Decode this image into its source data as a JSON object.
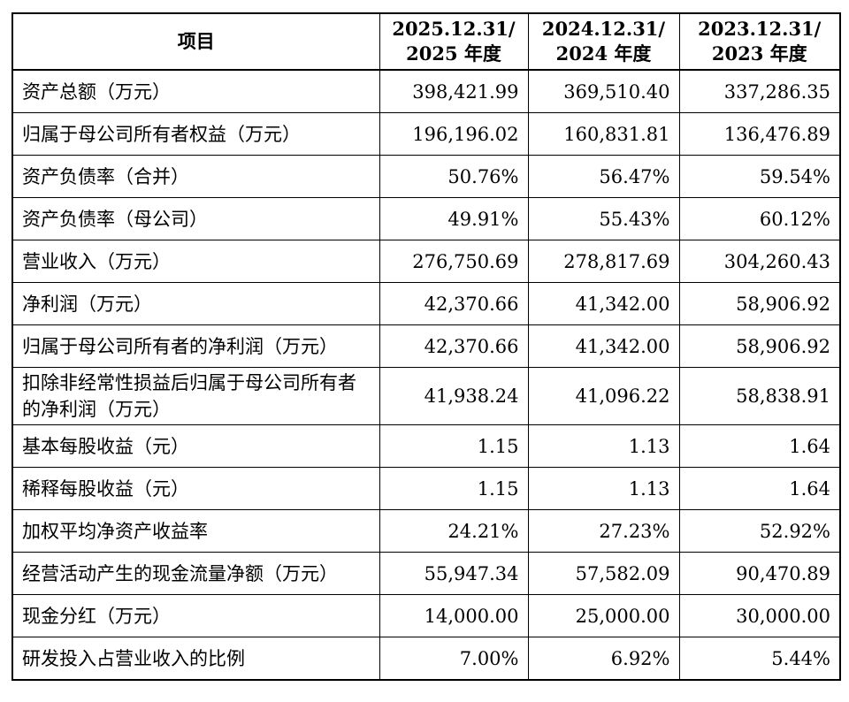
{
  "table": {
    "header": {
      "item": "项目",
      "periods": [
        {
          "line1": "2025.12.31/",
          "line2": "2025 年度"
        },
        {
          "line1": "2024.12.31/",
          "line2": "2024 年度"
        },
        {
          "line1": "2023.12.31/",
          "line2": "2023 年度"
        }
      ]
    },
    "rows": [
      {
        "label": "资产总额（万元）",
        "values": [
          "398,421.99",
          "369,510.40",
          "337,286.35"
        ]
      },
      {
        "label": "归属于母公司所有者权益（万元）",
        "values": [
          "196,196.02",
          "160,831.81",
          "136,476.89"
        ]
      },
      {
        "label": "资产负债率（合并）",
        "values": [
          "50.76%",
          "56.47%",
          "59.54%"
        ]
      },
      {
        "label": "资产负债率（母公司）",
        "values": [
          "49.91%",
          "55.43%",
          "60.12%"
        ]
      },
      {
        "label": "营业收入（万元）",
        "values": [
          "276,750.69",
          "278,817.69",
          "304,260.43"
        ]
      },
      {
        "label": "净利润（万元）",
        "values": [
          "42,370.66",
          "41,342.00",
          "58,906.92"
        ]
      },
      {
        "label": "归属于母公司所有者的净利润（万元）",
        "values": [
          "42,370.66",
          "41,342.00",
          "58,906.92"
        ]
      },
      {
        "label": "扣除非经常性损益后归属于母公司所有者的净利润（万元）",
        "values": [
          "41,938.24",
          "41,096.22",
          "58,838.91"
        ]
      },
      {
        "label": "基本每股收益（元）",
        "values": [
          "1.15",
          "1.13",
          "1.64"
        ]
      },
      {
        "label": "稀释每股收益（元）",
        "values": [
          "1.15",
          "1.13",
          "1.64"
        ]
      },
      {
        "label": "加权平均净资产收益率",
        "values": [
          "24.21%",
          "27.23%",
          "52.92%"
        ]
      },
      {
        "label": "经营活动产生的现金流量净额（万元）",
        "values": [
          "55,947.34",
          "57,582.09",
          "90,470.89"
        ]
      },
      {
        "label": "现金分红（万元）",
        "values": [
          "14,000.00",
          "25,000.00",
          "30,000.00"
        ]
      },
      {
        "label": "研发投入占营业收入的比例",
        "values": [
          "7.00%",
          "6.92%",
          "5.44%"
        ]
      }
    ]
  }
}
